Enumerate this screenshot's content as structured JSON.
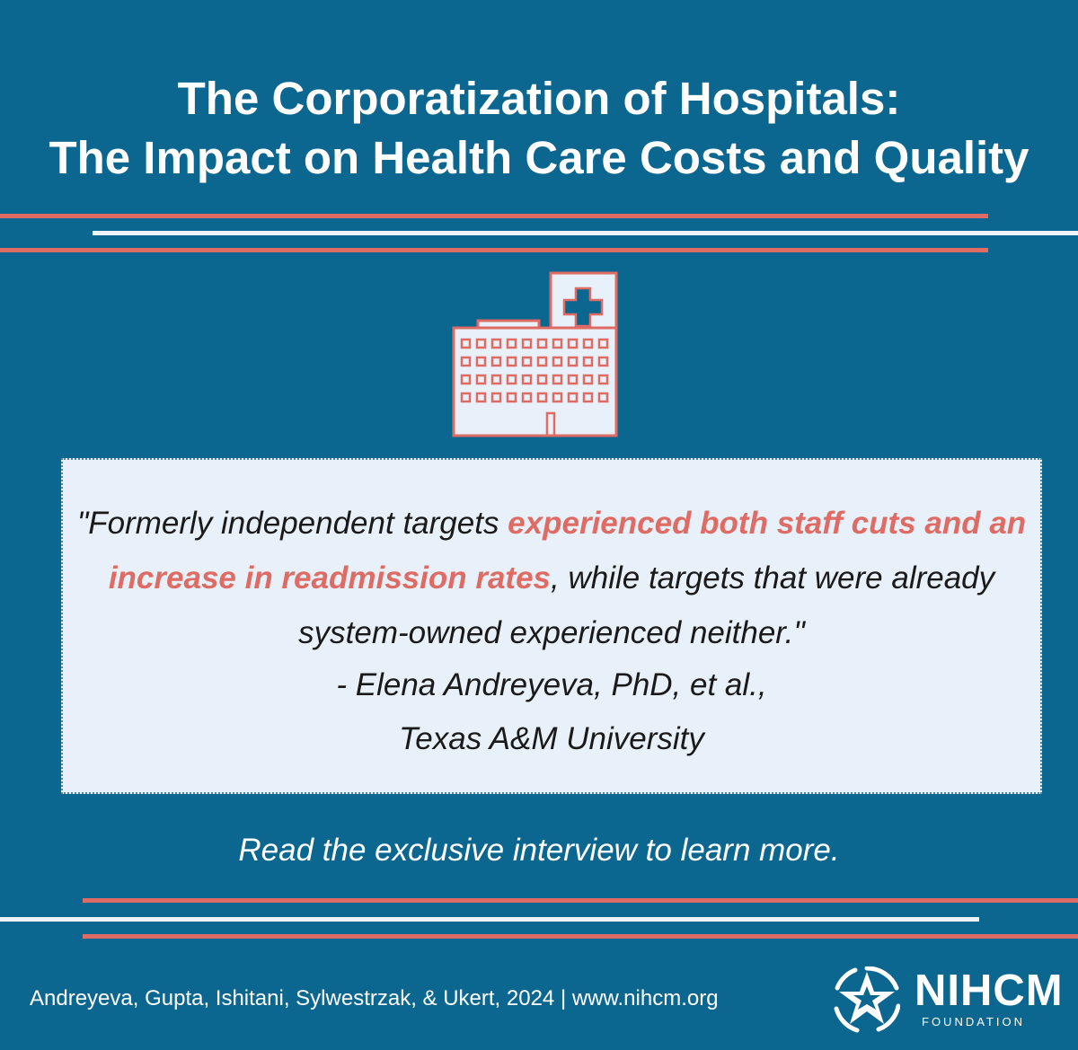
{
  "title": {
    "line1": "The Corporatization of Hospitals:",
    "line2": "The Impact on Health Care Costs and Quality"
  },
  "icon": "hospital-icon",
  "quote": {
    "before": "\"Formerly independent targets ",
    "highlight": "experienced both staff cuts and an increase in readmission rates",
    "after": ", while targets that were already system-owned experienced neither.\"",
    "attribution_line1": "- Elena Andreyeva, PhD, et al.,",
    "attribution_line2": "Texas A&M University"
  },
  "cta": "Read the exclusive interview to learn more.",
  "footer": {
    "citation": "Andreyeva, Gupta, Ishitani, Sylwestrzak, & Ukert, 2024 | www.nihcm.org"
  },
  "brand": {
    "name": "NIHCM",
    "subtitle": "FOUNDATION",
    "logo_icon": "nihcm-star-logo-icon"
  },
  "colors": {
    "background": "#0b6690",
    "accent": "#df6b65",
    "quote_box": "#e8f1f9",
    "white": "#ffffff"
  }
}
